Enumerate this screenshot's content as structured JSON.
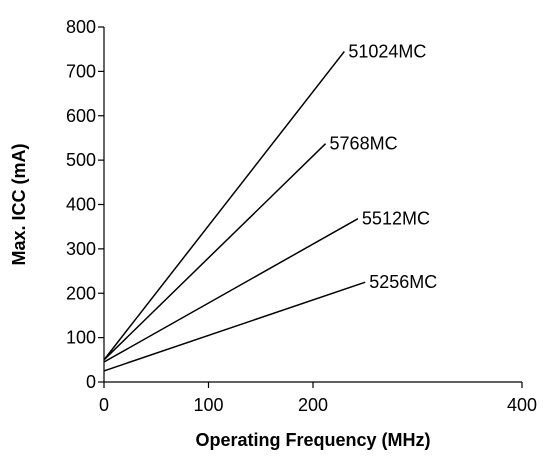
{
  "chart_data": {
    "type": "line",
    "title": "",
    "xlabel": "Operating Frequency (MHz)",
    "ylabel": "Max. ICC (mA)",
    "xlim": [
      0,
      400
    ],
    "ylim": [
      0,
      800
    ],
    "x_ticks": [
      "0",
      "100",
      "200",
      "400"
    ],
    "x_tick_values": [
      0,
      100,
      200,
      400
    ],
    "y_ticks": [
      "0",
      "100",
      "200",
      "300",
      "400",
      "500",
      "600",
      "700",
      "800"
    ],
    "y_tick_values": [
      0,
      100,
      200,
      300,
      400,
      500,
      600,
      700,
      800
    ],
    "grid": false,
    "legend": "none",
    "series": [
      {
        "name": "51024MC",
        "x": [
          0,
          230
        ],
        "y": [
          50,
          745
        ]
      },
      {
        "name": "5768MC",
        "x": [
          0,
          212
        ],
        "y": [
          50,
          537
        ]
      },
      {
        "name": "5512MC",
        "x": [
          0,
          243
        ],
        "y": [
          45,
          368
        ]
      },
      {
        "name": "5256MC",
        "x": [
          0,
          250
        ],
        "y": [
          25,
          225
        ]
      }
    ]
  }
}
